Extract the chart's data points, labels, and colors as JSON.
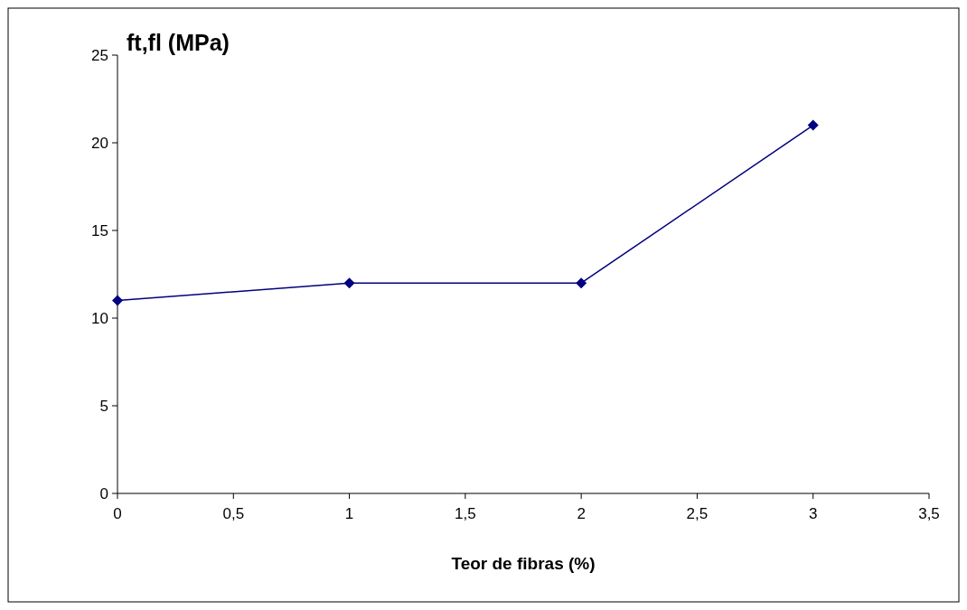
{
  "chart_data": {
    "type": "line",
    "ylabel": "ft,fl (MPa)",
    "xlabel": "Teor de fibras (%)",
    "x": [
      0,
      1,
      2,
      3
    ],
    "series": [
      {
        "color": "#000080",
        "values": [
          11,
          12,
          12,
          21
        ]
      }
    ],
    "xlim": [
      0,
      3.5
    ],
    "ylim": [
      0,
      25
    ],
    "xticks": [
      0,
      {
        "value": 0.5,
        "label": "0,5"
      },
      1,
      {
        "value": 1.5,
        "label": "1,5"
      },
      2,
      {
        "value": 2.5,
        "label": "2,5"
      },
      3,
      {
        "value": 3.5,
        "label": "3,5"
      }
    ],
    "yticks": [
      0,
      5,
      10,
      15,
      20,
      25
    ],
    "grid": false,
    "marker": "diamond",
    "line_style": "solid"
  }
}
